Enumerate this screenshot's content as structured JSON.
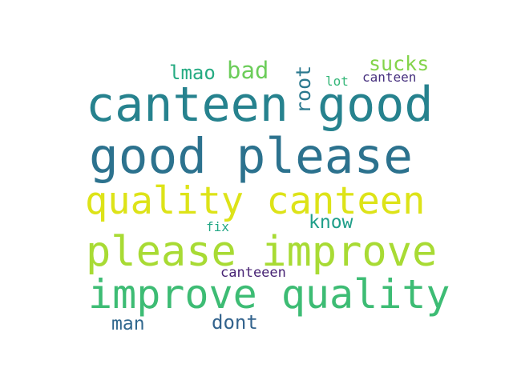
{
  "words": [
    {
      "text": "canteen good",
      "color": "#26828e"
    },
    {
      "text": "good please",
      "color": "#2c728e"
    },
    {
      "text": "quality canteen",
      "color": "#dde318"
    },
    {
      "text": "please improve",
      "color": "#a8db34"
    },
    {
      "text": "improve quality",
      "color": "#3dbc74"
    },
    {
      "text": "lmao",
      "color": "#25ab82"
    },
    {
      "text": "bad",
      "color": "#6ccd5a"
    },
    {
      "text": "root",
      "color": "#2a788e"
    },
    {
      "text": "sucks",
      "color": "#84d44b"
    },
    {
      "text": "lot",
      "color": "#35b779"
    },
    {
      "text": "canteen",
      "color": "#46307e"
    },
    {
      "text": "know",
      "color": "#1f9e89"
    },
    {
      "text": "fix",
      "color": "#22a785"
    },
    {
      "text": "canteeen",
      "color": "#482475"
    },
    {
      "text": "man",
      "color": "#31688e"
    },
    {
      "text": "dont",
      "color": "#33638d"
    }
  ]
}
